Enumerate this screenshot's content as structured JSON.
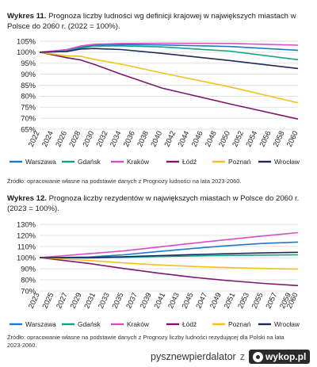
{
  "chart_data": [
    {
      "type": "line",
      "title_bold": "Wykres 11.",
      "title": "Prognoza liczby ludności wg definicji krajowej w największych miastach w Polsce do 2060 r. (2022 = 100%).",
      "source": "Źródło: opracowanie własne na podstawie danych z Prognozy ludności na lata 2023-2060.",
      "xlabel": "",
      "ylabel": "",
      "x": [
        2022,
        2024,
        2026,
        2028,
        2030,
        2032,
        2034,
        2036,
        2038,
        2040,
        2042,
        2044,
        2046,
        2048,
        2050,
        2052,
        2054,
        2056,
        2058,
        2060
      ],
      "y_ticks": [
        "65%",
        "70%",
        "75%",
        "80%",
        "85%",
        "90%",
        "95%",
        "100%",
        "105%"
      ],
      "ylim": [
        65,
        105
      ],
      "grid": true,
      "legend_position": "bottom",
      "series": [
        {
          "name": "Warszawa",
          "color": "#1f78c8",
          "values": [
            [
              2022,
              100
            ],
            [
              2026,
              100.7
            ],
            [
              2028,
              102.2
            ],
            [
              2030,
              103.2
            ],
            [
              2034,
              103.5
            ],
            [
              2040,
              103.3
            ],
            [
              2050,
              102.6
            ],
            [
              2060,
              100.9
            ]
          ]
        },
        {
          "name": "Gdańsk",
          "color": "#17a085",
          "values": [
            [
              2022,
              100
            ],
            [
              2026,
              100.5
            ],
            [
              2028,
              101.8
            ],
            [
              2030,
              102.8
            ],
            [
              2034,
              102.9
            ],
            [
              2040,
              102.4
            ],
            [
              2050,
              100.5
            ],
            [
              2060,
              96.6
            ]
          ]
        },
        {
          "name": "Kraków",
          "color": "#d64fc4",
          "values": [
            [
              2022,
              100
            ],
            [
              2026,
              101.2
            ],
            [
              2028,
              102.8
            ],
            [
              2030,
              103.6
            ],
            [
              2034,
              104
            ],
            [
              2040,
              104.1
            ],
            [
              2050,
              104
            ],
            [
              2060,
              103.2
            ]
          ]
        },
        {
          "name": "Łódź",
          "color": "#7e1570",
          "values": [
            [
              2022,
              100
            ],
            [
              2026,
              97.5
            ],
            [
              2028,
              96.5
            ],
            [
              2030,
              94.5
            ],
            [
              2034,
              90
            ],
            [
              2040,
              83.7
            ],
            [
              2050,
              76.5
            ],
            [
              2060,
              69.6
            ]
          ]
        },
        {
          "name": "Poznań",
          "color": "#f2c21b",
          "values": [
            [
              2022,
              100
            ],
            [
              2026,
              98.3
            ],
            [
              2028,
              98.2
            ],
            [
              2030,
              96.8
            ],
            [
              2034,
              94.6
            ],
            [
              2040,
              90.6
            ],
            [
              2050,
              84.2
            ],
            [
              2060,
              77
            ]
          ]
        },
        {
          "name": "Wrocław",
          "color": "#1c2a5c",
          "values": [
            [
              2022,
              100
            ],
            [
              2026,
              100.3
            ],
            [
              2028,
              101.4
            ],
            [
              2030,
              101.7
            ],
            [
              2034,
              101.2
            ],
            [
              2040,
              99.5
            ],
            [
              2050,
              96.2
            ],
            [
              2060,
              92.6
            ]
          ]
        }
      ]
    },
    {
      "type": "line",
      "title_bold": "Wykres 12.",
      "title": "Prognoza liczby rezydentów w największych miastach w Polsce do 2060 r. (2023 = 100%).",
      "source": "Źródło: opracowanie własne na podstawie danych z Prognozy liczby ludności rezydującej dla Polski na lata 2023-2060.",
      "xlabel": "",
      "ylabel": "",
      "x": [
        2023,
        2025,
        2027,
        2029,
        2031,
        2033,
        2035,
        2037,
        2039,
        2041,
        2043,
        2045,
        2047,
        2049,
        2051,
        2053,
        2055,
        2057,
        2059,
        2060
      ],
      "y_ticks": [
        "70%",
        "80%",
        "90%",
        "100%",
        "110%",
        "120%",
        "130%"
      ],
      "ylim": [
        70,
        130
      ],
      "grid": true,
      "legend_position": "bottom",
      "series": [
        {
          "name": "Warszawa",
          "color": "#1f78c8",
          "values": [
            [
              2023,
              100
            ],
            [
              2030,
              100.5
            ],
            [
              2035,
              102.5
            ],
            [
              2040,
              105.5
            ],
            [
              2045,
              108.3
            ],
            [
              2050,
              110.8
            ],
            [
              2055,
              112.8
            ],
            [
              2060,
              114
            ]
          ]
        },
        {
          "name": "Gdańsk",
          "color": "#17a085",
          "values": [
            [
              2023,
              100
            ],
            [
              2030,
              99.7
            ],
            [
              2035,
              100.2
            ],
            [
              2040,
              101
            ],
            [
              2045,
              101.5
            ],
            [
              2050,
              102
            ],
            [
              2055,
              102.3
            ],
            [
              2060,
              102.5
            ]
          ]
        },
        {
          "name": "Kraków",
          "color": "#d64fc4",
          "values": [
            [
              2023,
              100
            ],
            [
              2030,
              103.5
            ],
            [
              2035,
              106
            ],
            [
              2040,
              109.5
            ],
            [
              2045,
              113
            ],
            [
              2050,
              116.3
            ],
            [
              2055,
              119.5
            ],
            [
              2060,
              122.5
            ]
          ]
        },
        {
          "name": "Łódź",
          "color": "#7e1570",
          "values": [
            [
              2023,
              100
            ],
            [
              2030,
              94.8
            ],
            [
              2035,
              90.2
            ],
            [
              2040,
              86
            ],
            [
              2045,
              82.3
            ],
            [
              2050,
              79.3
            ],
            [
              2055,
              76.8
            ],
            [
              2060,
              74.8
            ]
          ]
        },
        {
          "name": "Poznań",
          "color": "#f2c21b",
          "values": [
            [
              2023,
              100
            ],
            [
              2030,
              97.5
            ],
            [
              2035,
              95.2
            ],
            [
              2040,
              93.4
            ],
            [
              2045,
              92
            ],
            [
              2050,
              91
            ],
            [
              2055,
              90.2
            ],
            [
              2060,
              89.6
            ]
          ]
        },
        {
          "name": "Wrocław",
          "color": "#1c2a5c",
          "values": [
            [
              2023,
              100
            ],
            [
              2030,
              100.1
            ],
            [
              2035,
              100.8
            ],
            [
              2040,
              101.8
            ],
            [
              2045,
              102.7
            ],
            [
              2050,
              103.5
            ],
            [
              2055,
              104.2
            ],
            [
              2060,
              104.8
            ]
          ]
        }
      ]
    }
  ],
  "watermark": {
    "user": "pysznewpierdalator",
    "separator": "z",
    "site": "wykop.pl",
    "logo_icon": "wykop-logo-icon"
  }
}
